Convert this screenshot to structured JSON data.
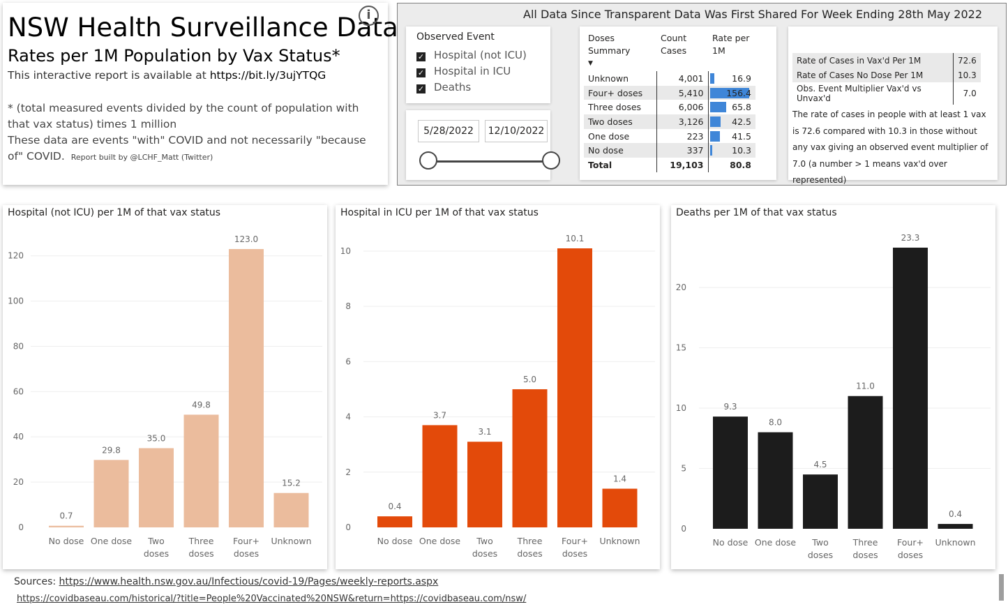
{
  "header": {
    "title": "NSW Health Surveillance Data",
    "subtitle": "Rates per 1M Population by Vax Status*",
    "interactive_prefix": "This interactive report is available at ",
    "interactive_link": "https://bit.ly/3ujYTQG",
    "note1": "* (total measured events divided by the count of population with that vax status) times 1 million",
    "note2": "These data are events \"with\" COVID and not necessarily \"because of\" COVID.",
    "byline": "Report built by @LCHF_Matt (Twitter)",
    "info_icon": "info-icon"
  },
  "period_title": "All Data Since Transparent Data Was First Shared For Week Ending 28th May 2022",
  "slicer": {
    "title": "Observed Event",
    "options": [
      "Hospital (not ICU)",
      "Hospital in ICU",
      "Deaths"
    ]
  },
  "dates": {
    "start": "5/28/2022",
    "end": "12/10/2022"
  },
  "doses_summary": {
    "headers": [
      "Doses Summary",
      "Count Cases",
      "Rate per 1M"
    ],
    "rows": [
      {
        "label": "Unknown",
        "count": "4,001",
        "rate": "16.9",
        "rate_value": 16.9
      },
      {
        "label": "Four+ doses",
        "count": "5,410",
        "rate": "156.4",
        "rate_value": 156.4
      },
      {
        "label": "Three doses",
        "count": "6,006",
        "rate": "65.8",
        "rate_value": 65.8
      },
      {
        "label": "Two doses",
        "count": "3,126",
        "rate": "42.5",
        "rate_value": 42.5
      },
      {
        "label": "One dose",
        "count": "223",
        "rate": "41.5",
        "rate_value": 41.5
      },
      {
        "label": "No dose",
        "count": "337",
        "rate": "10.3",
        "rate_value": 10.3
      }
    ],
    "total": {
      "label": "Total",
      "count": "19,103",
      "rate": "80.8"
    },
    "bar_color": "#3f86d8"
  },
  "rate_table": {
    "rows": [
      {
        "label": "Rate of Cases in Vax'd Per 1M",
        "value": "72.6"
      },
      {
        "label": "Rate of Cases No Dose Per 1M",
        "value": "10.3"
      },
      {
        "label": "Obs. Event Multiplier Vax'd vs Unvax'd",
        "value": "7.0"
      }
    ],
    "description": "The rate of cases in people with at least 1 vax is 72.6 compared with 10.3 in those without any vax giving an observed event multiplier of 7.0 (a number > 1 means vax'd over represented)"
  },
  "chart_data": [
    {
      "type": "bar",
      "title": "Hospital (not ICU) per 1M of that vax status",
      "categories": [
        "No dose",
        "One dose",
        "Two doses",
        "Three doses",
        "Four+ doses",
        "Unknown"
      ],
      "values": [
        0.7,
        29.8,
        35.0,
        49.8,
        123.0,
        15.2
      ],
      "value_labels": [
        "0.7",
        "29.8",
        "35.0",
        "49.8",
        "123.0",
        "15.2"
      ],
      "yticks": [
        0,
        20,
        40,
        60,
        80,
        100,
        120
      ],
      "ylim": [
        0,
        123
      ],
      "color": "#ebbc9d"
    },
    {
      "type": "bar",
      "title": "Hospital in ICU per 1M of that vax status",
      "categories": [
        "No dose",
        "One dose",
        "Two doses",
        "Three doses",
        "Four+ doses",
        "Unknown"
      ],
      "values": [
        0.4,
        3.7,
        3.1,
        5.0,
        10.1,
        1.4
      ],
      "value_labels": [
        "0.4",
        "3.7",
        "3.1",
        "5.0",
        "10.1",
        "1.4"
      ],
      "yticks": [
        0,
        2,
        4,
        6,
        8,
        10
      ],
      "ylim": [
        0,
        10.1
      ],
      "color": "#e34a0a"
    },
    {
      "type": "bar",
      "title": "Deaths per 1M of that vax status",
      "categories": [
        "No dose",
        "One dose",
        "Two doses",
        "Three doses",
        "Four+ doses",
        "Unknown"
      ],
      "values": [
        9.3,
        8.0,
        4.5,
        11.0,
        23.3,
        0.4
      ],
      "value_labels": [
        "9.3",
        "8.0",
        "4.5",
        "11.0",
        "23.3",
        "0.4"
      ],
      "yticks": [
        0,
        5,
        10,
        15,
        20
      ],
      "ylim": [
        0,
        23.3
      ],
      "color": "#1c1c1c"
    }
  ],
  "sources": {
    "label": "Sources: ",
    "link1": "https://www.health.nsw.gov.au/Infectious/covid-19/Pages/weekly-reports.aspx",
    "link2": "https://covidbaseau.com/historical/?title=People%20Vaccinated%20NSW&return=https://covidbaseau.com/nsw/"
  }
}
